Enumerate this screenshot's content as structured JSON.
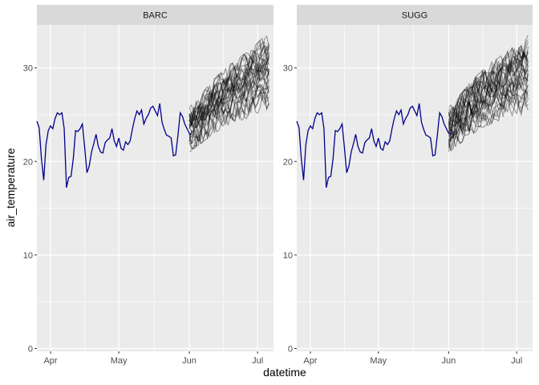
{
  "chart_data": {
    "type": "line",
    "xlabel": "datetime",
    "ylabel": "air_temperature",
    "ylim": [
      -0.3,
      34.6
    ],
    "xlim": [
      "2023-03-26",
      "2023-07-08"
    ],
    "x_ticks": [
      {
        "label": "Apr",
        "date": "2023-04-01"
      },
      {
        "label": "May",
        "date": "2023-05-01"
      },
      {
        "label": "Jun",
        "date": "2023-06-01"
      },
      {
        "label": "Jul",
        "date": "2023-07-01"
      }
    ],
    "y_ticks": [
      0,
      10,
      20,
      30
    ],
    "grid": true,
    "facets": [
      {
        "label": "BARC",
        "observed": {
          "color": "#00008B",
          "x": [
            "2023-03-26",
            "2023-03-27",
            "2023-03-28",
            "2023-03-29",
            "2023-03-30",
            "2023-03-31",
            "2023-04-01",
            "2023-04-02",
            "2023-04-03",
            "2023-04-04",
            "2023-04-05",
            "2023-04-06",
            "2023-04-07",
            "2023-04-08",
            "2023-04-09",
            "2023-04-10",
            "2023-04-11",
            "2023-04-12",
            "2023-04-13",
            "2023-04-14",
            "2023-04-15",
            "2023-04-16",
            "2023-04-17",
            "2023-04-18",
            "2023-04-19",
            "2023-04-20",
            "2023-04-21",
            "2023-04-22",
            "2023-04-23",
            "2023-04-24",
            "2023-04-25",
            "2023-04-26",
            "2023-04-27",
            "2023-04-28",
            "2023-04-29",
            "2023-04-30",
            "2023-05-01",
            "2023-05-02",
            "2023-05-03",
            "2023-05-04",
            "2023-05-05",
            "2023-05-06",
            "2023-05-07",
            "2023-05-08",
            "2023-05-09",
            "2023-05-10",
            "2023-05-11",
            "2023-05-12",
            "2023-05-13",
            "2023-05-14",
            "2023-05-15",
            "2023-05-16",
            "2023-05-17",
            "2023-05-18",
            "2023-05-19",
            "2023-05-20",
            "2023-05-21",
            "2023-05-22",
            "2023-05-23",
            "2023-05-24",
            "2023-05-25",
            "2023-05-26",
            "2023-05-27",
            "2023-05-28",
            "2023-05-29",
            "2023-05-30",
            "2023-05-31",
            "2023-06-01",
            "2023-06-02"
          ],
          "y": [
            24.3,
            23.6,
            20.3,
            18.0,
            21.8,
            23.3,
            23.8,
            23.5,
            24.6,
            25.2,
            25.0,
            25.2,
            23.5,
            17.2,
            18.3,
            18.4,
            20.3,
            23.3,
            23.2,
            23.5,
            24.0,
            21.5,
            18.8,
            19.5,
            21.0,
            21.9,
            22.9,
            21.6,
            21.0,
            20.9,
            22.0,
            22.3,
            22.5,
            23.5,
            22.2,
            21.6,
            22.5,
            21.4,
            21.2,
            22.1,
            21.8,
            22.2,
            23.5,
            24.6,
            25.4,
            25.0,
            25.5,
            24.0,
            24.6,
            25.0,
            25.7,
            25.9,
            25.4,
            24.9,
            26.2,
            24.2,
            23.4,
            22.8,
            22.7,
            22.5,
            20.6,
            20.7,
            22.8,
            25.2,
            24.8,
            24.0,
            23.5,
            23.0,
            22.9
          ]
        },
        "ensemble": {
          "color": "#000000",
          "start": "2023-06-01",
          "end": "2023-07-06",
          "min": [
            21.0,
            21.5,
            22.0,
            22.5,
            23.0,
            23.4,
            23.8,
            24.0,
            24.3,
            24.5,
            24.7,
            24.8,
            25.0,
            25.0
          ],
          "max": [
            25.8,
            26.4,
            27.2,
            28.0,
            28.8,
            29.4,
            30.0,
            30.6,
            31.0,
            31.5,
            32.0,
            32.6,
            33.2,
            33.5
          ]
        }
      },
      {
        "label": "SUGG",
        "observed": {
          "color": "#00008B",
          "x": [
            "2023-03-26",
            "2023-03-27",
            "2023-03-28",
            "2023-03-29",
            "2023-03-30",
            "2023-03-31",
            "2023-04-01",
            "2023-04-02",
            "2023-04-03",
            "2023-04-04",
            "2023-04-05",
            "2023-04-06",
            "2023-04-07",
            "2023-04-08",
            "2023-04-09",
            "2023-04-10",
            "2023-04-11",
            "2023-04-12",
            "2023-04-13",
            "2023-04-14",
            "2023-04-15",
            "2023-04-16",
            "2023-04-17",
            "2023-04-18",
            "2023-04-19",
            "2023-04-20",
            "2023-04-21",
            "2023-04-22",
            "2023-04-23",
            "2023-04-24",
            "2023-04-25",
            "2023-04-26",
            "2023-04-27",
            "2023-04-28",
            "2023-04-29",
            "2023-04-30",
            "2023-05-01",
            "2023-05-02",
            "2023-05-03",
            "2023-05-04",
            "2023-05-05",
            "2023-05-06",
            "2023-05-07",
            "2023-05-08",
            "2023-05-09",
            "2023-05-10",
            "2023-05-11",
            "2023-05-12",
            "2023-05-13",
            "2023-05-14",
            "2023-05-15",
            "2023-05-16",
            "2023-05-17",
            "2023-05-18",
            "2023-05-19",
            "2023-05-20",
            "2023-05-21",
            "2023-05-22",
            "2023-05-23",
            "2023-05-24",
            "2023-05-25",
            "2023-05-26",
            "2023-05-27",
            "2023-05-28",
            "2023-05-29",
            "2023-05-30",
            "2023-05-31",
            "2023-06-01",
            "2023-06-02"
          ],
          "y": [
            24.3,
            23.6,
            20.3,
            18.0,
            21.8,
            23.3,
            23.8,
            23.5,
            24.6,
            25.2,
            25.0,
            25.2,
            23.5,
            17.2,
            18.3,
            18.4,
            20.3,
            23.3,
            23.2,
            23.5,
            24.0,
            21.5,
            18.8,
            19.5,
            21.0,
            21.9,
            22.9,
            21.6,
            21.0,
            20.9,
            22.0,
            22.3,
            22.5,
            23.5,
            22.2,
            21.6,
            22.5,
            21.4,
            21.2,
            22.1,
            21.8,
            22.2,
            23.5,
            24.6,
            25.4,
            25.0,
            25.5,
            24.0,
            24.6,
            25.0,
            25.7,
            25.9,
            25.4,
            24.9,
            26.2,
            24.2,
            23.4,
            22.8,
            22.7,
            22.5,
            20.6,
            20.7,
            22.8,
            25.2,
            24.8,
            24.0,
            23.5,
            23.0,
            22.9
          ]
        },
        "ensemble": {
          "color": "#000000",
          "start": "2023-06-01",
          "end": "2023-07-06",
          "min": [
            21.0,
            21.5,
            22.0,
            22.5,
            23.0,
            23.4,
            23.8,
            24.0,
            24.3,
            24.5,
            24.7,
            24.8,
            25.0,
            25.0
          ],
          "max": [
            25.8,
            26.4,
            27.2,
            28.0,
            28.8,
            29.4,
            30.0,
            30.6,
            31.0,
            31.5,
            32.0,
            32.6,
            33.2,
            33.5
          ]
        }
      }
    ]
  }
}
